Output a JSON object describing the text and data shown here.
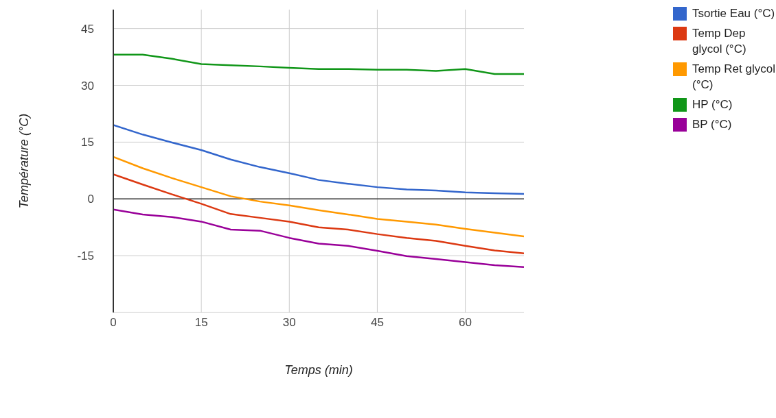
{
  "chart_data": {
    "type": "line",
    "xlabel": "Temps (min)",
    "ylabel": "Température (°C)",
    "x": [
      0,
      5,
      10,
      15,
      20,
      25,
      30,
      35,
      40,
      45,
      50,
      55,
      60,
      65,
      70
    ],
    "xlim": [
      0,
      70
    ],
    "xticks": [
      0,
      15,
      30,
      45,
      60
    ],
    "ylim": [
      -30,
      50
    ],
    "yticks": [
      -15,
      0,
      15,
      30,
      45
    ],
    "grid": true,
    "legend": "top right",
    "marker": "none",
    "line_style": "solid",
    "ref_lines": [
      {
        "axis": "y",
        "value": 0,
        "color": "#333333"
      }
    ],
    "series": [
      {
        "name": "Tsortie Eau (°C)",
        "color": "#3366cc",
        "values": [
          19.5,
          17,
          14.9,
          12.9,
          10.4,
          8.4,
          6.8,
          5,
          4,
          3.1,
          2.5,
          2.2,
          1.7,
          1.5,
          1.3
        ]
      },
      {
        "name": "Temp Dep glycol (°C)",
        "color": "#dc3912",
        "values": [
          6.5,
          3.8,
          1.2,
          -1.3,
          -4,
          -5,
          -6,
          -7.5,
          -8.1,
          -9.3,
          -10.3,
          -11.1,
          -12.4,
          -13.6,
          -14.4
        ]
      },
      {
        "name": "Temp Ret glycol (°C)",
        "color": "#ff9900",
        "values": [
          11.1,
          8.1,
          5.5,
          3.1,
          0.7,
          -0.7,
          -1.7,
          -3,
          -4.1,
          -5.3,
          -6,
          -6.8,
          -7.9,
          -8.9,
          -9.9
        ]
      },
      {
        "name": "HP (°C)",
        "color": "#109618",
        "values": [
          38.1,
          38.1,
          37,
          35.6,
          35.3,
          35,
          34.6,
          34.3,
          34.3,
          34.1,
          34.1,
          33.8,
          34.3,
          33,
          33
        ]
      },
      {
        "name": "BP (°C)",
        "color": "#990099",
        "values": [
          -2.8,
          -4.1,
          -4.8,
          -6,
          -8.1,
          -8.4,
          -10.3,
          -11.8,
          -12.4,
          -13.7,
          -15.1,
          -15.9,
          -16.7,
          -17.5,
          -18
        ]
      }
    ]
  }
}
